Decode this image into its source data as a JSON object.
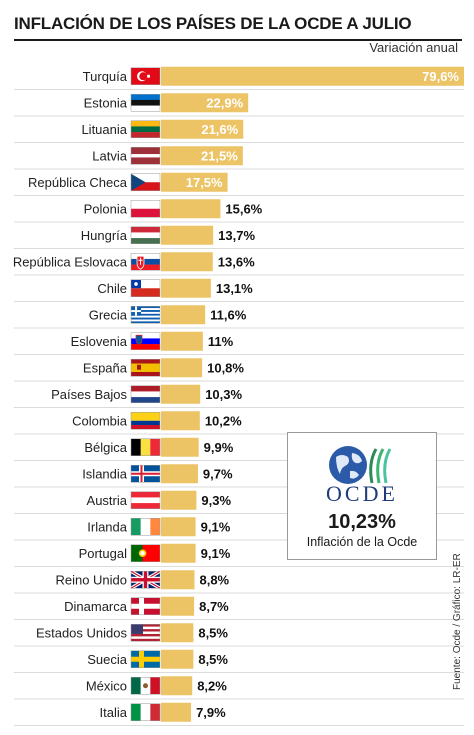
{
  "title": "INFLACIÓN DE LOS PAÍSES DE LA OCDE A JULIO",
  "unit_label": "Variación anual",
  "source": "Fuente: Ocde / Gráfico: LR-ER",
  "callout": {
    "logo_text": "OCDE",
    "value": "10,23%",
    "label": "Inflación de la Ocde"
  },
  "colors": {
    "bar": "#ecc466",
    "separator": "#cfcfcf"
  },
  "chart_data": {
    "type": "bar",
    "orientation": "horizontal",
    "xlim": [
      0,
      79.6
    ],
    "categories": [
      "Turquía",
      "Estonia",
      "Lituania",
      "Latvia",
      "República Checa",
      "Polonia",
      "Hungría",
      "República Eslovaca",
      "Chile",
      "Grecia",
      "Eslovenia",
      "España",
      "Países Bajos",
      "Colombia",
      "Bélgica",
      "Islandia",
      "Austria",
      "Irlanda",
      "Portugal",
      "Reino Unido",
      "Dinamarca",
      "Estados Unidos",
      "Suecia",
      "México",
      "Italia"
    ],
    "values": [
      79.6,
      22.9,
      21.6,
      21.5,
      17.5,
      15.6,
      13.7,
      13.6,
      13.1,
      11.6,
      11,
      10.8,
      10.3,
      10.2,
      9.9,
      9.7,
      9.3,
      9.1,
      9.1,
      8.8,
      8.7,
      8.5,
      8.5,
      8.2,
      7.9
    ],
    "value_labels": [
      "79,6%",
      "22,9%",
      "21,6%",
      "21,5%",
      "17,5%",
      "15,6%",
      "13,7%",
      "13,6%",
      "13,1%",
      "11,6%",
      "11%",
      "10,8%",
      "10,3%",
      "10,2%",
      "9,9%",
      "9,7%",
      "9,3%",
      "9,1%",
      "9,1%",
      "8,8%",
      "8,7%",
      "8,5%",
      "8,5%",
      "8,2%",
      "7,9%"
    ],
    "flags": [
      "turkey",
      "estonia",
      "lithuania",
      "latvia",
      "czech-republic",
      "poland",
      "hungary",
      "slovakia",
      "chile",
      "greece",
      "slovenia",
      "spain",
      "netherlands",
      "colombia",
      "belgium",
      "iceland",
      "austria",
      "ireland",
      "portugal",
      "united-kingdom",
      "denmark",
      "united-states",
      "sweden",
      "mexico",
      "italy"
    ]
  }
}
